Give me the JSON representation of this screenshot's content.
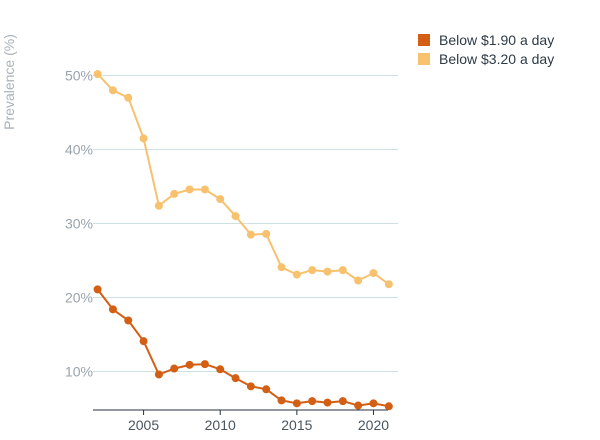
{
  "chart_data": {
    "type": "line",
    "ylabel": "Prevalence (%)",
    "xlabel": "",
    "ylim": [
      4.8,
      52.5
    ],
    "xlim": [
      2001.7,
      2021.6
    ],
    "y_ticks": [
      10,
      20,
      30,
      40,
      50
    ],
    "y_tick_labels": [
      "10%",
      "20%",
      "30%",
      "40%",
      "50%"
    ],
    "x_ticks": [
      2005,
      2010,
      2015,
      2020
    ],
    "x_tick_labels": [
      "2005",
      "2010",
      "2015",
      "2020"
    ],
    "grid": "horizontal",
    "legend_position": "top-right",
    "series": [
      {
        "name": "Below $1.90 a day",
        "color": "#d35f14",
        "x": [
          2002,
          2003,
          2004,
          2005,
          2006,
          2007,
          2008,
          2009,
          2010,
          2011,
          2012,
          2013,
          2014,
          2015,
          2016,
          2017,
          2018,
          2019,
          2020,
          2021
        ],
        "values": [
          21.1,
          18.4,
          16.9,
          14.1,
          9.6,
          10.4,
          10.9,
          11.0,
          10.3,
          9.1,
          8.0,
          7.6,
          6.1,
          5.7,
          6.0,
          5.8,
          6.0,
          5.4,
          5.7,
          5.3
        ]
      },
      {
        "name": "Below $3.20 a day",
        "color": "#f7c16e",
        "x": [
          2002,
          2003,
          2004,
          2005,
          2006,
          2007,
          2008,
          2009,
          2010,
          2011,
          2012,
          2013,
          2014,
          2015,
          2016,
          2017,
          2018,
          2019,
          2020,
          2021
        ],
        "values": [
          50.2,
          48.0,
          47.0,
          41.5,
          32.4,
          34.0,
          34.6,
          34.6,
          33.3,
          31.0,
          28.5,
          28.6,
          24.1,
          23.1,
          23.7,
          23.5,
          23.7,
          22.3,
          23.3,
          21.8
        ]
      }
    ]
  }
}
